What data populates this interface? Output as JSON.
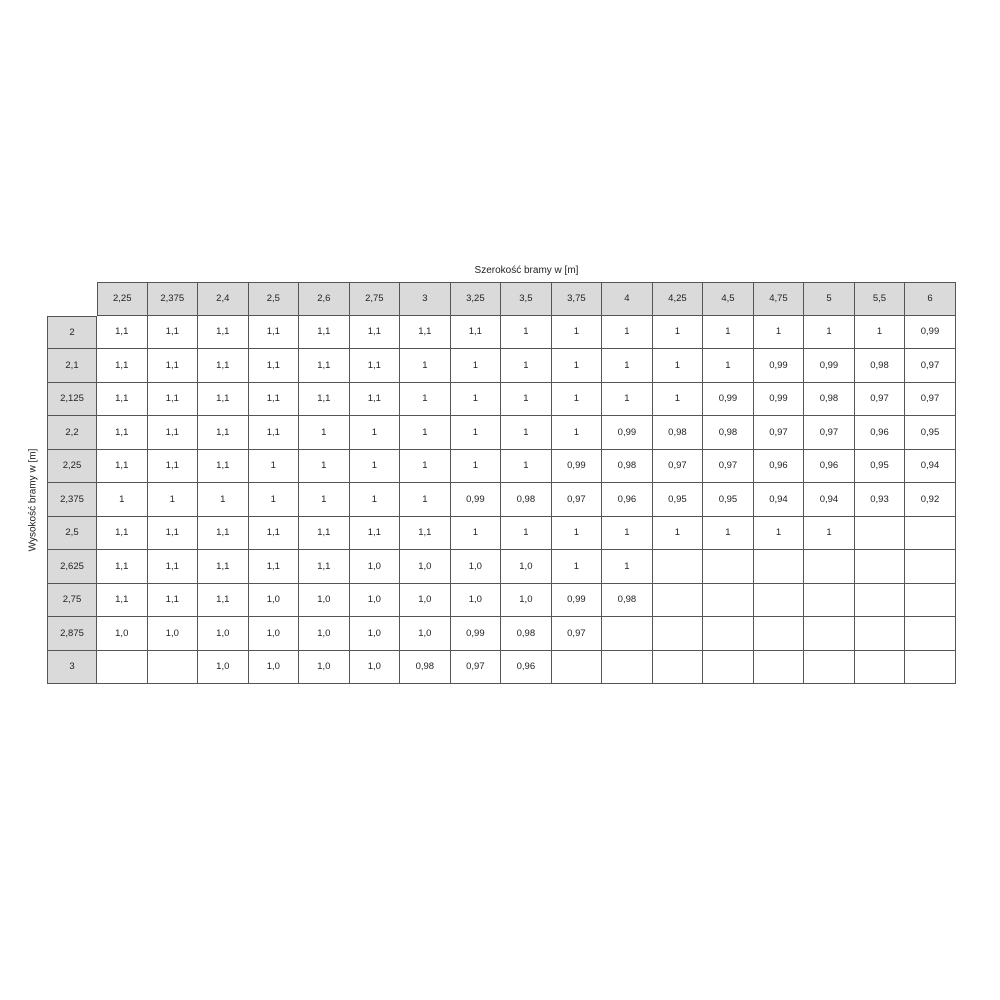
{
  "title": "Szerokość bramy w [m]",
  "ylabel": "Wysokość bramy w [m]",
  "columns": [
    "2,25",
    "2,375",
    "2,4",
    "2,5",
    "2,6",
    "2,75",
    "3",
    "3,25",
    "3,5",
    "3,75",
    "4",
    "4,25",
    "4,5",
    "4,75",
    "5",
    "5,5",
    "6"
  ],
  "rows": [
    {
      "h": "2",
      "v": [
        "1,1",
        "1,1",
        "1,1",
        "1,1",
        "1,1",
        "1,1",
        "1,1",
        "1,1",
        "1",
        "1",
        "1",
        "1",
        "1",
        "1",
        "1",
        "1",
        "0,99"
      ]
    },
    {
      "h": "2,1",
      "v": [
        "1,1",
        "1,1",
        "1,1",
        "1,1",
        "1,1",
        "1,1",
        "1",
        "1",
        "1",
        "1",
        "1",
        "1",
        "1",
        "0,99",
        "0,99",
        "0,98",
        "0,97"
      ]
    },
    {
      "h": "2,125",
      "v": [
        "1,1",
        "1,1",
        "1,1",
        "1,1",
        "1,1",
        "1,1",
        "1",
        "1",
        "1",
        "1",
        "1",
        "1",
        "0,99",
        "0,99",
        "0,98",
        "0,97",
        "0,97"
      ]
    },
    {
      "h": "2,2",
      "v": [
        "1,1",
        "1,1",
        "1,1",
        "1,1",
        "1",
        "1",
        "1",
        "1",
        "1",
        "1",
        "0,99",
        "0,98",
        "0,98",
        "0,97",
        "0,97",
        "0,96",
        "0,95"
      ]
    },
    {
      "h": "2,25",
      "v": [
        "1,1",
        "1,1",
        "1,1",
        "1",
        "1",
        "1",
        "1",
        "1",
        "1",
        "0,99",
        "0,98",
        "0,97",
        "0,97",
        "0,96",
        "0,96",
        "0,95",
        "0,94"
      ]
    },
    {
      "h": "2,375",
      "v": [
        "1",
        "1",
        "1",
        "1",
        "1",
        "1",
        "1",
        "0,99",
        "0,98",
        "0,97",
        "0,96",
        "0,95",
        "0,95",
        "0,94",
        "0,94",
        "0,93",
        "0,92"
      ]
    },
    {
      "h": "2,5",
      "v": [
        "1,1",
        "1,1",
        "1,1",
        "1,1",
        "1,1",
        "1,1",
        "1,1",
        "1",
        "1",
        "1",
        "1",
        "1",
        "1",
        "1",
        "1",
        "",
        ""
      ]
    },
    {
      "h": "2,625",
      "v": [
        "1,1",
        "1,1",
        "1,1",
        "1,1",
        "1,1",
        "1,0",
        "1,0",
        "1,0",
        "1,0",
        "1",
        "1",
        "",
        "",
        "",
        "",
        "",
        ""
      ]
    },
    {
      "h": "2,75",
      "v": [
        "1,1",
        "1,1",
        "1,1",
        "1,0",
        "1,0",
        "1,0",
        "1,0",
        "1,0",
        "1,0",
        "0,99",
        "0,98",
        "",
        "",
        "",
        "",
        "",
        ""
      ]
    },
    {
      "h": "2,875",
      "v": [
        "1,0",
        "1,0",
        "1,0",
        "1,0",
        "1,0",
        "1,0",
        "1,0",
        "0,99",
        "0,98",
        "0,97",
        "",
        "",
        "",
        "",
        "",
        "",
        ""
      ]
    },
    {
      "h": "3",
      "v": [
        "",
        "",
        "1,0",
        "1,0",
        "1,0",
        "1,0",
        "0,98",
        "0,97",
        "0,96",
        "",
        "",
        "",
        "",
        "",
        "",
        "",
        ""
      ]
    }
  ]
}
